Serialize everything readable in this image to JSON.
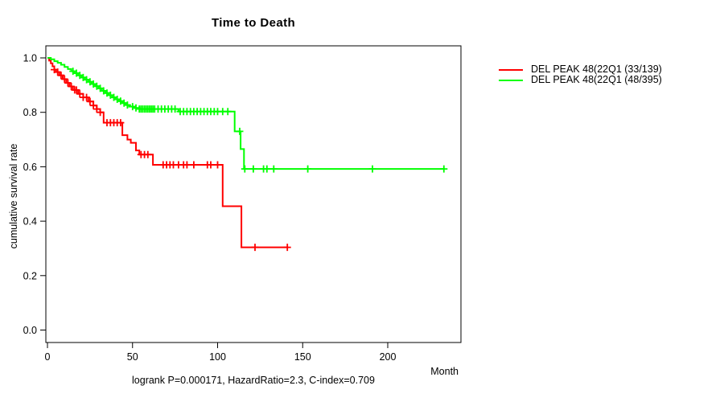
{
  "footer": {
    "text": "logrank P=0.000171, HazardRatio=2.3, C-index=0.709"
  },
  "chart_data": {
    "type": "line",
    "subtype": "kaplan-meier-step",
    "title": "Time to Death",
    "xlabel": "Month",
    "ylabel": "cumulative survival rate",
    "xlim": [
      0,
      243
    ],
    "ylim": [
      0.0,
      1.0
    ],
    "grid": false,
    "legend_position": "right-outside",
    "xticks": [
      {
        "label": "0",
        "value": 0
      },
      {
        "label": "50",
        "value": 50
      },
      {
        "label": "100",
        "value": 100
      },
      {
        "label": "150",
        "value": 150
      },
      {
        "label": "200",
        "value": 200
      }
    ],
    "yticks": [
      {
        "label": "0.0",
        "value": 0.0
      },
      {
        "label": "0.2",
        "value": 0.2
      },
      {
        "label": "0.4",
        "value": 0.4
      },
      {
        "label": "0.6",
        "value": 0.6
      },
      {
        "label": "0.8",
        "value": 0.8
      },
      {
        "label": "1.0",
        "value": 1.0
      }
    ],
    "series": [
      {
        "name": "DEL PEAK 48(22Q1 (33/139)",
        "color": "#ff0000",
        "events": "33/139",
        "steps": [
          [
            0,
            1.0
          ],
          [
            1,
            0.99
          ],
          [
            2,
            0.98
          ],
          [
            3,
            0.969
          ],
          [
            4,
            0.957
          ],
          [
            5,
            0.948
          ],
          [
            7,
            0.936
          ],
          [
            9,
            0.922
          ],
          [
            11,
            0.908
          ],
          [
            13,
            0.895
          ],
          [
            15,
            0.882
          ],
          [
            18,
            0.868
          ],
          [
            21,
            0.855
          ],
          [
            24,
            0.84
          ],
          [
            27,
            0.825
          ],
          [
            29,
            0.812
          ],
          [
            31,
            0.8
          ],
          [
            33,
            0.762
          ],
          [
            44,
            0.716
          ],
          [
            47,
            0.7
          ],
          [
            49,
            0.688
          ],
          [
            52,
            0.66
          ],
          [
            54,
            0.645
          ],
          [
            62,
            0.607
          ],
          [
            103,
            0.455
          ],
          [
            114,
            0.304
          ]
        ],
        "end_time": 141.5,
        "censor_times": [
          4,
          6,
          8,
          10,
          12,
          14,
          16,
          17,
          19,
          21,
          23,
          25,
          27,
          29,
          31,
          35,
          37,
          39,
          41,
          43,
          55,
          57,
          59,
          68,
          70,
          72,
          74,
          77,
          80,
          82,
          86,
          94,
          96,
          100,
          122,
          141
        ]
      },
      {
        "name": "DEL PEAK 48(22Q1 (48/395)",
        "color": "#00ff00",
        "events": "48/395",
        "steps": [
          [
            0,
            1.0
          ],
          [
            2,
            0.995
          ],
          [
            4,
            0.988
          ],
          [
            6,
            0.982
          ],
          [
            8,
            0.975
          ],
          [
            10,
            0.967
          ],
          [
            12,
            0.959
          ],
          [
            14,
            0.951
          ],
          [
            16,
            0.944
          ],
          [
            18,
            0.936
          ],
          [
            20,
            0.928
          ],
          [
            22,
            0.92
          ],
          [
            24,
            0.912
          ],
          [
            26,
            0.904
          ],
          [
            28,
            0.896
          ],
          [
            30,
            0.888
          ],
          [
            32,
            0.879
          ],
          [
            34,
            0.871
          ],
          [
            36,
            0.863
          ],
          [
            38,
            0.855
          ],
          [
            40,
            0.848
          ],
          [
            42,
            0.841
          ],
          [
            44,
            0.834
          ],
          [
            46,
            0.827
          ],
          [
            48,
            0.821
          ],
          [
            51,
            0.816
          ],
          [
            54,
            0.812
          ],
          [
            77,
            0.803
          ],
          [
            110,
            0.73
          ],
          [
            113.5,
            0.665
          ],
          [
            115.5,
            0.592
          ]
        ],
        "end_time": 233.5,
        "censor_times": [
          15,
          17,
          19,
          21,
          23,
          25,
          27,
          29,
          31,
          33,
          35,
          37,
          39,
          41,
          43,
          45,
          47,
          50,
          52,
          54,
          55,
          56,
          57,
          58,
          59,
          60,
          61,
          62,
          63,
          65,
          67,
          69,
          71,
          73,
          75,
          78,
          80,
          82,
          84,
          86,
          88,
          90,
          92,
          94,
          96,
          98,
          100,
          103,
          106,
          113,
          116,
          121,
          127,
          129,
          133,
          153,
          191,
          233
        ]
      }
    ]
  }
}
